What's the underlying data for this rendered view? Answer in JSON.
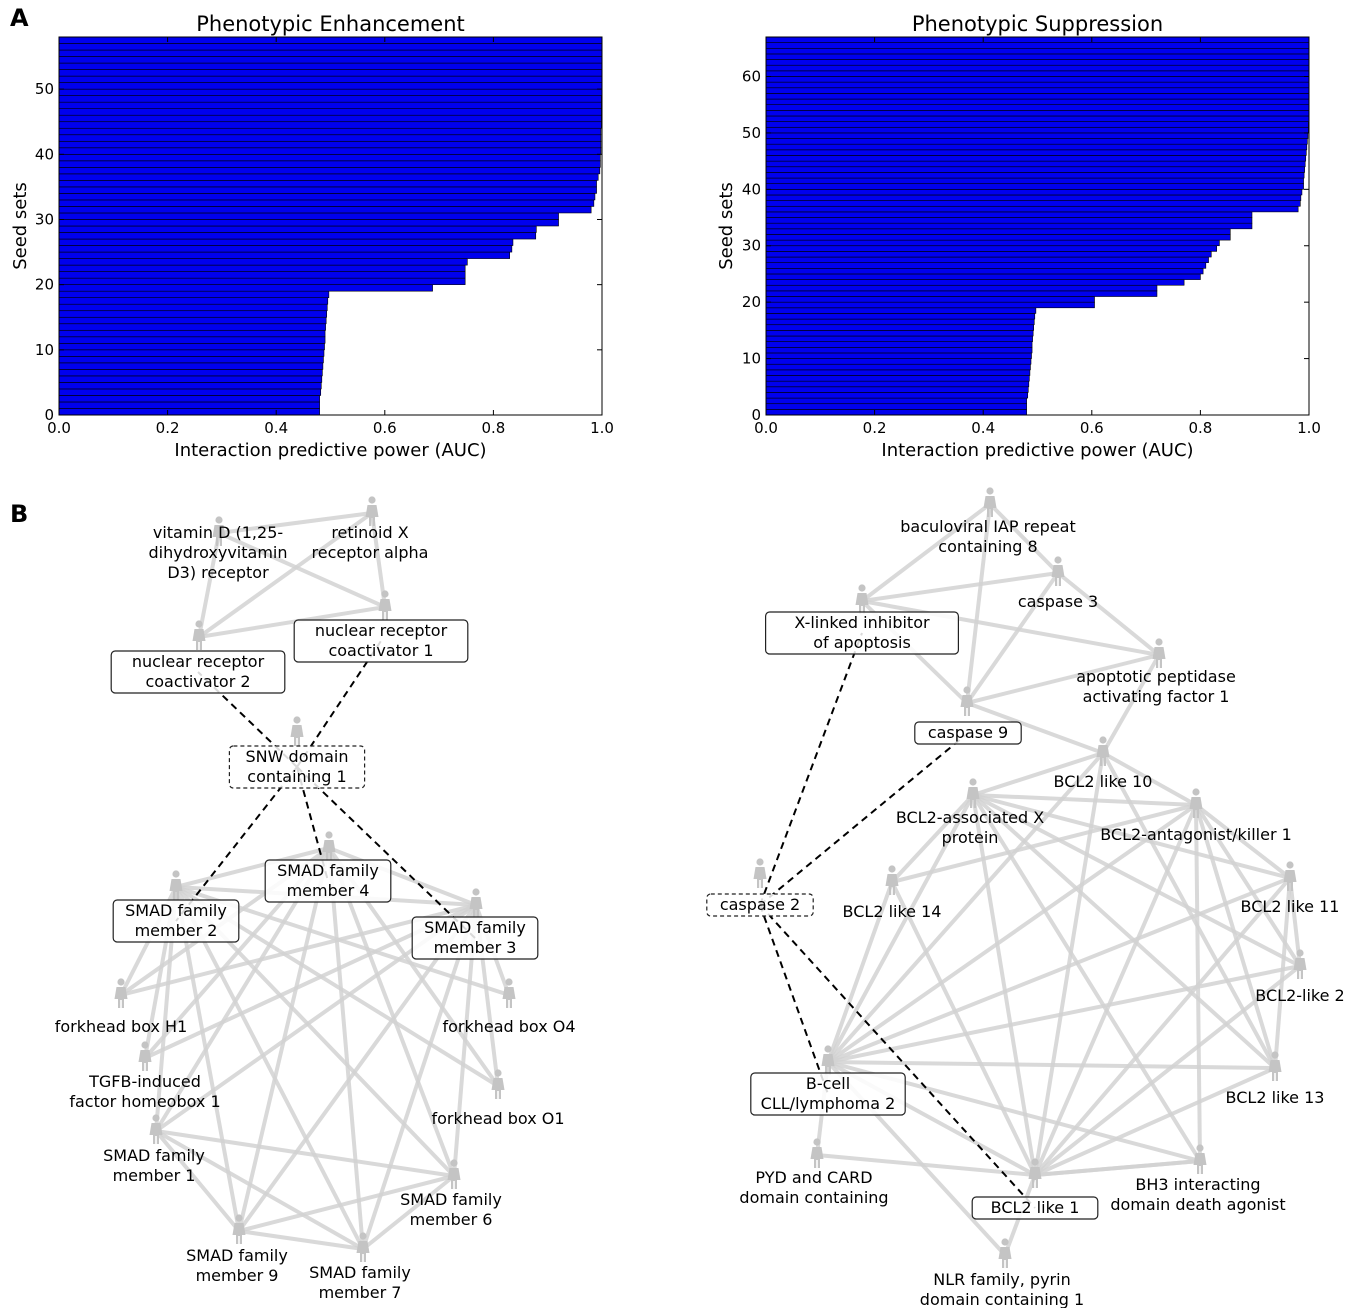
{
  "panel_labels": {
    "a": "A",
    "b": "B"
  },
  "colors": {
    "bar": "#0000ee",
    "bar_edge": "#000000",
    "edge": "#d3d3d3",
    "node_icon": "#c4c4c4"
  },
  "chart_data": [
    {
      "type": "bar",
      "orientation": "horizontal",
      "title": "Phenotypic Enhancement",
      "xlabel": "Interaction predictive power (AUC)",
      "ylabel": "Seed sets",
      "xlim": [
        0.0,
        1.0
      ],
      "ylim": [
        0,
        58
      ],
      "xticks": [
        "0.0",
        "0.2",
        "0.4",
        "0.6",
        "0.8",
        "1.0"
      ],
      "yticks": [
        "0",
        "10",
        "20",
        "30",
        "40",
        "50"
      ],
      "values": [
        0.48,
        0.48,
        0.48,
        0.482,
        0.483,
        0.484,
        0.485,
        0.486,
        0.487,
        0.488,
        0.489,
        0.49,
        0.49,
        0.491,
        0.492,
        0.493,
        0.494,
        0.495,
        0.497,
        0.688,
        0.748,
        0.748,
        0.748,
        0.752,
        0.83,
        0.834,
        0.836,
        0.878,
        0.879,
        0.92,
        0.92,
        0.98,
        0.985,
        0.987,
        0.99,
        0.99,
        0.993,
        0.996,
        0.997,
        0.997,
        0.998,
        0.998,
        0.998,
        0.998,
        0.999,
        0.999,
        0.999,
        0.999,
        0.999,
        1.0,
        1.0,
        1.0,
        1.0,
        1.0,
        1.0,
        1.0,
        1.0,
        1.0
      ]
    },
    {
      "type": "bar",
      "orientation": "horizontal",
      "title": "Phenotypic Suppression",
      "xlabel": "Interaction predictive power (AUC)",
      "ylabel": "Seed sets",
      "xlim": [
        0.0,
        1.0
      ],
      "ylim": [
        0,
        67
      ],
      "xticks": [
        "0.0",
        "0.2",
        "0.4",
        "0.6",
        "0.8",
        "1.0"
      ],
      "yticks": [
        "0",
        "10",
        "20",
        "30",
        "40",
        "50",
        "60"
      ],
      "values": [
        0.48,
        0.48,
        0.48,
        0.482,
        0.483,
        0.484,
        0.485,
        0.486,
        0.487,
        0.488,
        0.489,
        0.49,
        0.49,
        0.491,
        0.492,
        0.493,
        0.494,
        0.495,
        0.497,
        0.605,
        0.605,
        0.72,
        0.72,
        0.77,
        0.8,
        0.805,
        0.81,
        0.815,
        0.82,
        0.83,
        0.835,
        0.855,
        0.855,
        0.895,
        0.895,
        0.895,
        0.98,
        0.984,
        0.985,
        0.987,
        0.99,
        0.99,
        0.991,
        0.992,
        0.993,
        0.994,
        0.995,
        0.996,
        0.997,
        0.998,
        0.999,
        0.999,
        1.0,
        1.0,
        1.0,
        1.0,
        1.0,
        1.0,
        1.0,
        1.0,
        1.0,
        1.0,
        1.0,
        1.0,
        1.0,
        1.0,
        1.0
      ]
    }
  ],
  "network_left": {
    "nodes": [
      {
        "id": "vdr",
        "label": "vitamin D (1,25-\ndihydroxyvitamin\nD3) receptor",
        "boxed": "none"
      },
      {
        "id": "rxra",
        "label": "retinoid X\nreceptor alpha",
        "boxed": "none"
      },
      {
        "id": "ncoa1",
        "label": "nuclear receptor\ncoactivator 1",
        "boxed": "solid"
      },
      {
        "id": "ncoa2",
        "label": "nuclear receptor\ncoactivator 2",
        "boxed": "solid"
      },
      {
        "id": "snw1",
        "label": "SNW domain\ncontaining 1",
        "boxed": "dashed"
      },
      {
        "id": "smad4",
        "label": "SMAD family\nmember 4",
        "boxed": "solid"
      },
      {
        "id": "smad2",
        "label": "SMAD family\nmember 2",
        "boxed": "solid"
      },
      {
        "id": "smad3",
        "label": "SMAD family\nmember 3",
        "boxed": "solid"
      },
      {
        "id": "foxh1",
        "label": "forkhead box H1",
        "boxed": "none"
      },
      {
        "id": "foxo4",
        "label": "forkhead box O4",
        "boxed": "none"
      },
      {
        "id": "tgif1",
        "label": "TGFB-induced\nfactor homeobox 1",
        "boxed": "none"
      },
      {
        "id": "foxo1",
        "label": "forkhead box O1",
        "boxed": "none"
      },
      {
        "id": "smad1",
        "label": "SMAD family\nmember 1",
        "boxed": "none"
      },
      {
        "id": "smad6",
        "label": "SMAD family\nmember 6",
        "boxed": "none"
      },
      {
        "id": "smad9",
        "label": "SMAD family\nmember 9",
        "boxed": "none"
      },
      {
        "id": "smad7",
        "label": "SMAD family\nmember 7",
        "boxed": "none"
      }
    ],
    "dashed_edges": [
      [
        "snw1",
        "ncoa2"
      ],
      [
        "snw1",
        "ncoa1"
      ],
      [
        "snw1",
        "smad2"
      ],
      [
        "snw1",
        "smad4"
      ],
      [
        "snw1",
        "smad3"
      ]
    ],
    "edges": [
      [
        "vdr",
        "ncoa1"
      ],
      [
        "vdr",
        "ncoa2"
      ],
      [
        "rxra",
        "ncoa1"
      ],
      [
        "rxra",
        "ncoa2"
      ],
      [
        "rxra",
        "vdr"
      ],
      [
        "ncoa1",
        "ncoa2"
      ],
      [
        "smad4",
        "smad2"
      ],
      [
        "smad4",
        "smad3"
      ],
      [
        "smad2",
        "smad3"
      ],
      [
        "smad2",
        "foxh1"
      ],
      [
        "smad2",
        "tgif1"
      ],
      [
        "smad2",
        "smad1"
      ],
      [
        "smad2",
        "smad6"
      ],
      [
        "smad2",
        "smad9"
      ],
      [
        "smad2",
        "smad7"
      ],
      [
        "smad2",
        "foxo1"
      ],
      [
        "smad4",
        "foxh1"
      ],
      [
        "smad4",
        "smad1"
      ],
      [
        "smad4",
        "smad6"
      ],
      [
        "smad4",
        "smad9"
      ],
      [
        "smad4",
        "smad7"
      ],
      [
        "smad4",
        "foxo1"
      ],
      [
        "smad4",
        "tgif1"
      ],
      [
        "smad3",
        "foxo4"
      ],
      [
        "smad3",
        "foxo1"
      ],
      [
        "smad3",
        "smad1"
      ],
      [
        "smad3",
        "smad6"
      ],
      [
        "smad3",
        "smad9"
      ],
      [
        "smad3",
        "smad7"
      ],
      [
        "smad3",
        "tgif1"
      ],
      [
        "smad3",
        "foxh1"
      ],
      [
        "smad1",
        "smad6"
      ],
      [
        "smad1",
        "smad9"
      ],
      [
        "smad9",
        "smad7"
      ],
      [
        "smad6",
        "smad7"
      ],
      [
        "smad9",
        "smad6"
      ],
      [
        "smad1",
        "smad7"
      ],
      [
        "foxo4",
        "smad2"
      ]
    ]
  },
  "network_right": {
    "nodes": [
      {
        "id": "birc8",
        "label": "baculoviral IAP repeat\ncontaining 8",
        "boxed": "none"
      },
      {
        "id": "casp3",
        "label": "caspase 3",
        "boxed": "none"
      },
      {
        "id": "xiap",
        "label": "X-linked inhibitor\nof apoptosis",
        "boxed": "solid"
      },
      {
        "id": "apaf1",
        "label": "apoptotic peptidase\nactivating factor 1",
        "boxed": "none"
      },
      {
        "id": "casp9",
        "label": "caspase 9",
        "boxed": "solid"
      },
      {
        "id": "bcl2l10",
        "label": "BCL2 like 10",
        "boxed": "none"
      },
      {
        "id": "bax",
        "label": "BCL2-associated X\nprotein",
        "boxed": "none"
      },
      {
        "id": "bak1",
        "label": "BCL2-antagonist/killer 1",
        "boxed": "none"
      },
      {
        "id": "casp2",
        "label": "caspase 2",
        "boxed": "dashed"
      },
      {
        "id": "bcl2l14",
        "label": "BCL2 like 14",
        "boxed": "none"
      },
      {
        "id": "bcl2l11",
        "label": "BCL2 like 11",
        "boxed": "none"
      },
      {
        "id": "bcl2l2",
        "label": "BCL2-like 2",
        "boxed": "none"
      },
      {
        "id": "bcl2",
        "label": "B-cell\nCLL/lymphoma 2",
        "boxed": "solid"
      },
      {
        "id": "bcl2l13",
        "label": "BCL2 like 13",
        "boxed": "none"
      },
      {
        "id": "pycard",
        "label": "PYD and CARD\ndomain containing",
        "boxed": "none"
      },
      {
        "id": "bid",
        "label": "BH3 interacting\ndomain death agonist",
        "boxed": "none"
      },
      {
        "id": "bcl2l1",
        "label": "BCL2 like 1",
        "boxed": "solid"
      },
      {
        "id": "nlrp1",
        "label": "NLR family, pyrin\ndomain containing 1",
        "boxed": "none"
      }
    ],
    "dashed_edges": [
      [
        "casp2",
        "xiap"
      ],
      [
        "casp2",
        "casp9"
      ],
      [
        "casp2",
        "bcl2"
      ],
      [
        "casp2",
        "bcl2l1"
      ]
    ],
    "edges": [
      [
        "birc8",
        "casp3"
      ],
      [
        "birc8",
        "casp9"
      ],
      [
        "birc8",
        "xiap"
      ],
      [
        "casp3",
        "casp9"
      ],
      [
        "casp3",
        "xiap"
      ],
      [
        "casp3",
        "apaf1"
      ],
      [
        "xiap",
        "casp9"
      ],
      [
        "xiap",
        "apaf1"
      ],
      [
        "casp9",
        "apaf1"
      ],
      [
        "casp9",
        "bcl2l10"
      ],
      [
        "apaf1",
        "bcl2l10"
      ],
      [
        "bax",
        "bcl2l14"
      ],
      [
        "bax",
        "bak1"
      ],
      [
        "bax",
        "bcl2"
      ],
      [
        "bax",
        "bcl2l1"
      ],
      [
        "bax",
        "bcl2l11"
      ],
      [
        "bax",
        "bcl2l2"
      ],
      [
        "bax",
        "bcl2l13"
      ],
      [
        "bax",
        "bid"
      ],
      [
        "bak1",
        "bcl2"
      ],
      [
        "bak1",
        "bcl2l1"
      ],
      [
        "bak1",
        "bcl2l11"
      ],
      [
        "bak1",
        "bcl2l2"
      ],
      [
        "bak1",
        "bcl2l13"
      ],
      [
        "bak1",
        "bid"
      ],
      [
        "bak1",
        "bcl2l14"
      ],
      [
        "bcl2l10",
        "bcl2"
      ],
      [
        "bcl2l10",
        "bcl2l1"
      ],
      [
        "bcl2l10",
        "bax"
      ],
      [
        "bcl2l10",
        "bak1"
      ],
      [
        "bcl2l10",
        "bcl2l13"
      ],
      [
        "bcl2l14",
        "bcl2"
      ],
      [
        "bcl2l14",
        "bcl2l1"
      ],
      [
        "bcl2l11",
        "bcl2"
      ],
      [
        "bcl2l11",
        "bcl2l1"
      ],
      [
        "bcl2l11",
        "bcl2l2"
      ],
      [
        "bcl2l11",
        "bcl2l13"
      ],
      [
        "bcl2l2",
        "bcl2"
      ],
      [
        "bcl2l2",
        "bcl2l1"
      ],
      [
        "bcl2l13",
        "bcl2"
      ],
      [
        "bcl2l13",
        "bcl2l1"
      ],
      [
        "bcl2",
        "pycard"
      ],
      [
        "bcl2",
        "bid"
      ],
      [
        "bcl2",
        "bcl2l1"
      ],
      [
        "bcl2",
        "nlrp1"
      ],
      [
        "bcl2l1",
        "bid"
      ],
      [
        "pycard",
        "bcl2l1"
      ],
      [
        "nlrp1",
        "bcl2l1"
      ],
      [
        "bid",
        "bcl2l1"
      ]
    ]
  }
}
